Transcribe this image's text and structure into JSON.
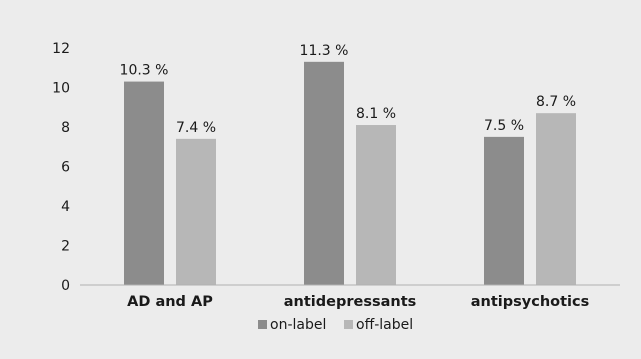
{
  "chart_data": {
    "type": "bar",
    "categories": [
      "AD and AP",
      "antidepressants",
      "antipsychotics"
    ],
    "series": [
      {
        "name": "on-label",
        "values": [
          10.3,
          11.3,
          7.5
        ],
        "labels": [
          "10.3 %",
          "11.3 %",
          "7.5 %"
        ],
        "color": "#8c8c8c"
      },
      {
        "name": "off-label",
        "values": [
          7.4,
          8.1,
          8.7
        ],
        "labels": [
          "7.4 %",
          "8.1 %",
          "8.7 %"
        ],
        "color": "#b7b7b7"
      }
    ],
    "y_ticks": [
      "0",
      "2",
      "4",
      "6",
      "8",
      "10",
      "12"
    ],
    "ylim": [
      0,
      12
    ],
    "grid": false,
    "legend_position": "bottom",
    "background_color": "#ececec"
  }
}
